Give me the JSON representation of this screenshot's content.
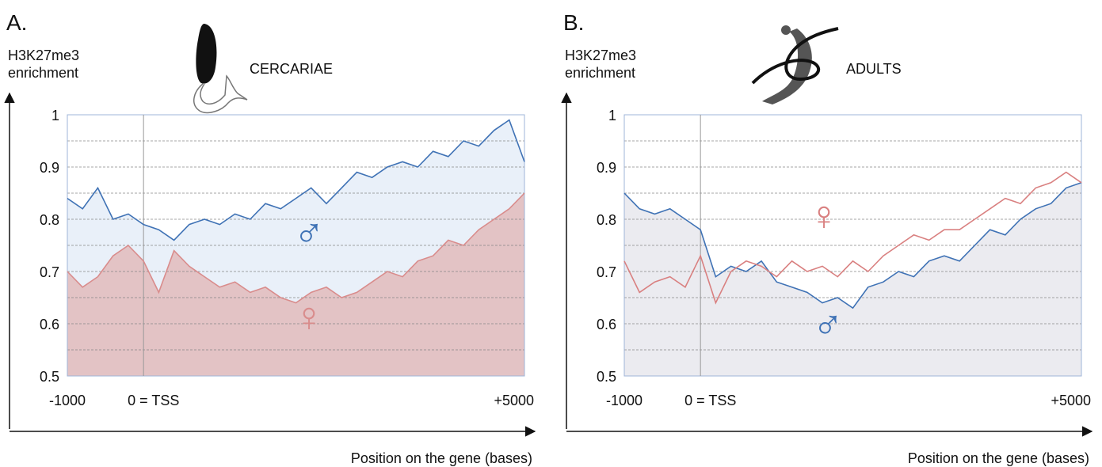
{
  "chart_data": [
    {
      "type": "line",
      "panel_label": "A.",
      "title": "CERCARIAE",
      "y_label": [
        "H3K27me3",
        "enrichment"
      ],
      "x_label": "Position on the gene (bases)",
      "xlim": [
        -1000,
        5000
      ],
      "xticks": [
        -1000,
        {
          "value": 0,
          "label": "0 = TSS"
        },
        {
          "value": 5000,
          "label": "+5000"
        }
      ],
      "ylim": [
        0.5,
        1
      ],
      "yticks": [
        0.5,
        0.6,
        0.7,
        0.8,
        0.9,
        1
      ],
      "grid_lines": [
        0.55,
        0.6,
        0.65,
        0.7,
        0.75,
        0.8,
        0.85,
        0.9,
        0.95,
        1
      ],
      "x": [
        -1000,
        -800,
        -600,
        -400,
        -200,
        0,
        200,
        400,
        600,
        800,
        1000,
        1200,
        1400,
        1600,
        1800,
        2000,
        2200,
        2400,
        2600,
        2800,
        3000,
        3200,
        3400,
        3600,
        3800,
        4000,
        4200,
        4400,
        4600,
        4800,
        5000
      ],
      "series": [
        {
          "name": "♂",
          "color": "#3f72b5",
          "fill": "#e9f0f9",
          "values": [
            0.84,
            0.82,
            0.86,
            0.8,
            0.81,
            0.79,
            0.78,
            0.76,
            0.79,
            0.8,
            0.79,
            0.81,
            0.8,
            0.83,
            0.82,
            0.84,
            0.86,
            0.83,
            0.86,
            0.89,
            0.88,
            0.9,
            0.91,
            0.9,
            0.93,
            0.92,
            0.95,
            0.94,
            0.97,
            0.99,
            0.91
          ]
        },
        {
          "name": "♀",
          "color": "#d98c8c",
          "fill": "#e3c3c5",
          "values": [
            0.7,
            0.67,
            0.69,
            0.73,
            0.75,
            0.72,
            0.66,
            0.74,
            0.71,
            0.69,
            0.67,
            0.68,
            0.66,
            0.67,
            0.65,
            0.64,
            0.66,
            0.67,
            0.65,
            0.66,
            0.68,
            0.7,
            0.69,
            0.72,
            0.73,
            0.76,
            0.75,
            0.78,
            0.8,
            0.82,
            0.85
          ]
        }
      ]
    },
    {
      "type": "line",
      "panel_label": "B.",
      "title": "ADULTS",
      "y_label": [
        "H3K27me3",
        "enrichment"
      ],
      "x_label": "Position on the gene (bases)",
      "xlim": [
        -1000,
        5000
      ],
      "xticks": [
        -1000,
        {
          "value": 0,
          "label": "0 = TSS"
        },
        {
          "value": 5000,
          "label": "+5000"
        }
      ],
      "ylim": [
        0.5,
        1
      ],
      "yticks": [
        0.5,
        0.6,
        0.7,
        0.8,
        0.9,
        1
      ],
      "grid_lines": [
        0.55,
        0.6,
        0.65,
        0.7,
        0.75,
        0.8,
        0.85,
        0.9,
        0.95,
        1
      ],
      "x": [
        -1000,
        -800,
        -600,
        -400,
        -200,
        0,
        200,
        400,
        600,
        800,
        1000,
        1200,
        1400,
        1600,
        1800,
        2000,
        2200,
        2400,
        2600,
        2800,
        3000,
        3200,
        3400,
        3600,
        3800,
        4000,
        4200,
        4400,
        4600,
        4800,
        5000
      ],
      "series": [
        {
          "name": "♂",
          "color": "#3f72b5",
          "fill": "#ebebf0",
          "values": [
            0.85,
            0.82,
            0.81,
            0.82,
            0.8,
            0.78,
            0.69,
            0.71,
            0.7,
            0.72,
            0.68,
            0.67,
            0.66,
            0.64,
            0.65,
            0.63,
            0.67,
            0.68,
            0.7,
            0.69,
            0.72,
            0.73,
            0.72,
            0.75,
            0.78,
            0.77,
            0.8,
            0.82,
            0.83,
            0.86,
            0.87
          ]
        },
        {
          "name": "♀",
          "color": "#d98080",
          "values": [
            0.72,
            0.66,
            0.68,
            0.69,
            0.67,
            0.73,
            0.64,
            0.7,
            0.72,
            0.71,
            0.69,
            0.72,
            0.7,
            0.71,
            0.69,
            0.72,
            0.7,
            0.73,
            0.75,
            0.77,
            0.76,
            0.78,
            0.78,
            0.8,
            0.82,
            0.84,
            0.83,
            0.86,
            0.87,
            0.89,
            0.87
          ]
        }
      ]
    }
  ]
}
